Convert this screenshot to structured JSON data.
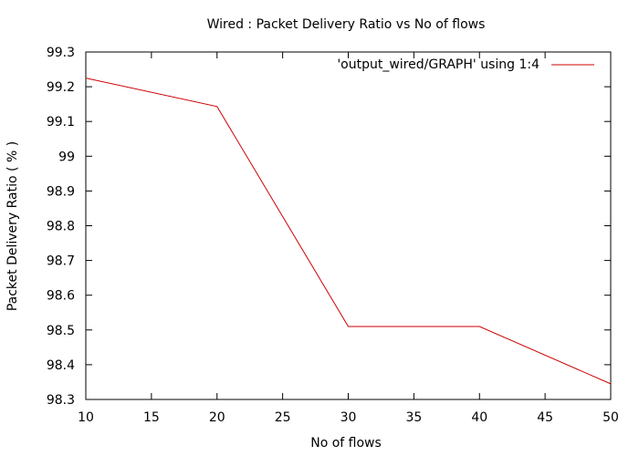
{
  "chart_data": {
    "type": "line",
    "title": "Wired : Packet Delivery Ratio vs No of flows",
    "xlabel": "No of flows",
    "ylabel": "Packet Delivery Ratio ( % )",
    "xlim": [
      10,
      50
    ],
    "ylim": [
      98.3,
      99.3
    ],
    "xticks": [
      "10",
      "15",
      "20",
      "25",
      "30",
      "35",
      "40",
      "45",
      "50"
    ],
    "yticks": [
      "98.3",
      "98.4",
      "98.5",
      "98.6",
      "98.7",
      "98.8",
      "98.9",
      "99",
      "99.1",
      "99.2",
      "99.3"
    ],
    "legend_position": "top-right",
    "grid": false,
    "series": [
      {
        "name": "'output_wired/GRAPH' using 1:4",
        "color": "#cc0000",
        "x": [
          10,
          20,
          30,
          40,
          50
        ],
        "y": [
          99.225,
          99.143,
          98.51,
          98.51,
          98.345
        ]
      }
    ]
  }
}
